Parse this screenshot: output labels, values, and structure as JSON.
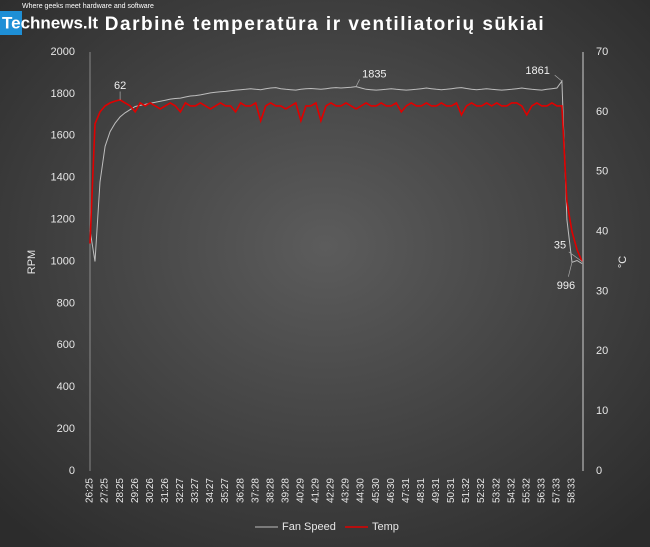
{
  "watermark": {
    "brand": "Technews.lt",
    "tagline": "Where geeks meet hardware and software"
  },
  "chart_data": {
    "type": "line",
    "title": "Darbinė temperatūra ir ventiliatorių sūkiai",
    "ylabel": "RPM",
    "y2label": "°C",
    "ylim": [
      0,
      2000
    ],
    "yticks": [
      0,
      200,
      400,
      600,
      800,
      1000,
      1200,
      1400,
      1600,
      1800,
      2000
    ],
    "y2lim": [
      0,
      70
    ],
    "y2ticks": [
      0,
      10,
      20,
      30,
      40,
      50,
      60,
      70
    ],
    "legend": "bottom",
    "grid": false,
    "categories": [
      "26:25",
      null,
      null,
      "27:25",
      null,
      null,
      "28:25",
      null,
      null,
      "29:26",
      null,
      null,
      "30:26",
      null,
      null,
      "31:26",
      null,
      null,
      "32:27",
      null,
      null,
      "33:27",
      null,
      null,
      "34:27",
      null,
      null,
      "35:27",
      null,
      null,
      "36:28",
      null,
      null,
      "37:28",
      null,
      null,
      "38:28",
      null,
      null,
      "39:28",
      null,
      null,
      "40:29",
      null,
      null,
      "41:29",
      null,
      null,
      "42:29",
      null,
      null,
      "43:29",
      null,
      null,
      "44:30",
      null,
      null,
      "45:30",
      null,
      null,
      "46:30",
      null,
      null,
      "47:31",
      null,
      null,
      "48:31",
      null,
      null,
      "49:31",
      null,
      null,
      "50:31",
      null,
      null,
      "51:32",
      null,
      null,
      "52:32",
      null,
      null,
      "53:32",
      null,
      null,
      "54:32",
      null,
      null,
      "55:32",
      null,
      null,
      "56:33",
      null,
      null,
      "57:33",
      null,
      null,
      "58:33",
      null,
      null
    ],
    "series": [
      {
        "name": "Fan Speed",
        "color": "#bdbdbd",
        "axis": "y",
        "values": [
          1150,
          1000,
          1380,
          1550,
          1620,
          1660,
          1690,
          1710,
          1725,
          1740,
          1745,
          1750,
          1755,
          1760,
          1765,
          1770,
          1775,
          1778,
          1780,
          1785,
          1790,
          1792,
          1795,
          1800,
          1805,
          1808,
          1810,
          1812,
          1815,
          1818,
          1820,
          1822,
          1825,
          1822,
          1820,
          1825,
          1828,
          1830,
          1825,
          1822,
          1820,
          1818,
          1822,
          1825,
          1826,
          1824,
          1822,
          1825,
          1828,
          1830,
          1828,
          1830,
          1832,
          1835,
          1828,
          1822,
          1820,
          1818,
          1820,
          1822,
          1825,
          1822,
          1820,
          1818,
          1820,
          1822,
          1825,
          1828,
          1825,
          1822,
          1820,
          1822,
          1825,
          1828,
          1830,
          1826,
          1822,
          1820,
          1822,
          1825,
          1822,
          1820,
          1818,
          1820,
          1822,
          1825,
          1828,
          1825,
          1822,
          1820,
          1818,
          1822,
          1825,
          1828,
          1861,
          1200,
          996,
          1005,
          990
        ],
        "value_labels": [
          null,
          null,
          null,
          null,
          null,
          null,
          null,
          null,
          null,
          null,
          null,
          null,
          null,
          null,
          null,
          null,
          null,
          null,
          null,
          null,
          null,
          null,
          null,
          null,
          null,
          null,
          null,
          null,
          null,
          null,
          null,
          null,
          null,
          null,
          null,
          null,
          null,
          null,
          null,
          null,
          null,
          null,
          null,
          null,
          null,
          null,
          null,
          null,
          null,
          null,
          null,
          null,
          null,
          "1835",
          null,
          null,
          null,
          null,
          null,
          null,
          null,
          null,
          null,
          null,
          null,
          null,
          null,
          null,
          null,
          null,
          null,
          null,
          null,
          null,
          null,
          null,
          null,
          null,
          null,
          null,
          null,
          null,
          null,
          null,
          null,
          null,
          null,
          null,
          null,
          null,
          null,
          null,
          null,
          null,
          "1861",
          null,
          "996",
          null,
          null
        ]
      },
      {
        "name": "Temp",
        "color": "#e00000",
        "axis": "y2",
        "values": [
          38,
          58,
          60,
          61,
          61.5,
          61.8,
          62,
          61.5,
          61,
          60,
          61.5,
          61,
          61.5,
          61,
          60.5,
          61,
          61.5,
          61,
          60,
          61.5,
          61,
          61,
          61.5,
          61,
          60.5,
          61,
          61.5,
          61,
          61,
          60,
          61.5,
          61,
          61,
          61.5,
          58.5,
          61,
          61.5,
          61,
          61,
          60.5,
          61,
          61.5,
          58.5,
          61,
          61,
          61.5,
          58.5,
          61,
          61.5,
          61,
          61,
          61.5,
          61,
          60.5,
          61,
          61.5,
          61,
          61,
          61.5,
          61,
          61,
          61.5,
          60,
          61,
          61.5,
          61,
          61,
          61.5,
          61,
          61,
          61.5,
          61,
          61,
          61.5,
          59.5,
          61,
          61.5,
          61,
          61,
          61.5,
          61,
          61.5,
          61,
          61,
          61.5,
          61.5,
          61,
          59.5,
          61,
          61.5,
          61,
          61,
          61.5,
          61,
          61,
          45,
          40,
          37,
          35
        ],
        "value_labels": [
          null,
          null,
          null,
          null,
          null,
          null,
          "62",
          null,
          null,
          null,
          null,
          null,
          null,
          null,
          null,
          null,
          null,
          null,
          null,
          null,
          null,
          null,
          null,
          null,
          null,
          null,
          null,
          null,
          null,
          null,
          null,
          null,
          null,
          null,
          null,
          null,
          null,
          null,
          null,
          null,
          null,
          null,
          null,
          null,
          null,
          null,
          null,
          null,
          null,
          null,
          null,
          null,
          null,
          null,
          null,
          null,
          null,
          null,
          null,
          null,
          null,
          null,
          null,
          null,
          null,
          null,
          null,
          null,
          null,
          null,
          null,
          null,
          null,
          null,
          null,
          null,
          null,
          null,
          null,
          null,
          null,
          null,
          null,
          null,
          null,
          null,
          null,
          null,
          null,
          null,
          null,
          null,
          null,
          null,
          null,
          null,
          null,
          null,
          "35"
        ]
      }
    ]
  }
}
